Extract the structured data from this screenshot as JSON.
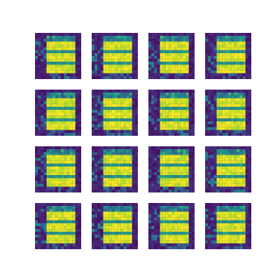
{
  "figure": {
    "rows": 4,
    "cols": 4,
    "image_resolution": 16
  },
  "colormap": {
    "name": "viridis",
    "stops": [
      "#440154",
      "#482777",
      "#3f4a8a",
      "#31678e",
      "#26838f",
      "#1f9d8a",
      "#6cce5a",
      "#b6de2b",
      "#fee825"
    ]
  },
  "samples": [
    {
      "variant": 0
    },
    {
      "variant": 1
    },
    {
      "variant": 2
    },
    {
      "variant": 3
    },
    {
      "variant": 4
    },
    {
      "variant": 5
    },
    {
      "variant": 6
    },
    {
      "variant": 7
    },
    {
      "variant": 8
    },
    {
      "variant": 9
    },
    {
      "variant": 10
    },
    {
      "variant": 11
    },
    {
      "variant": 12
    },
    {
      "variant": 13
    },
    {
      "variant": 14
    },
    {
      "variant": 15
    }
  ]
}
